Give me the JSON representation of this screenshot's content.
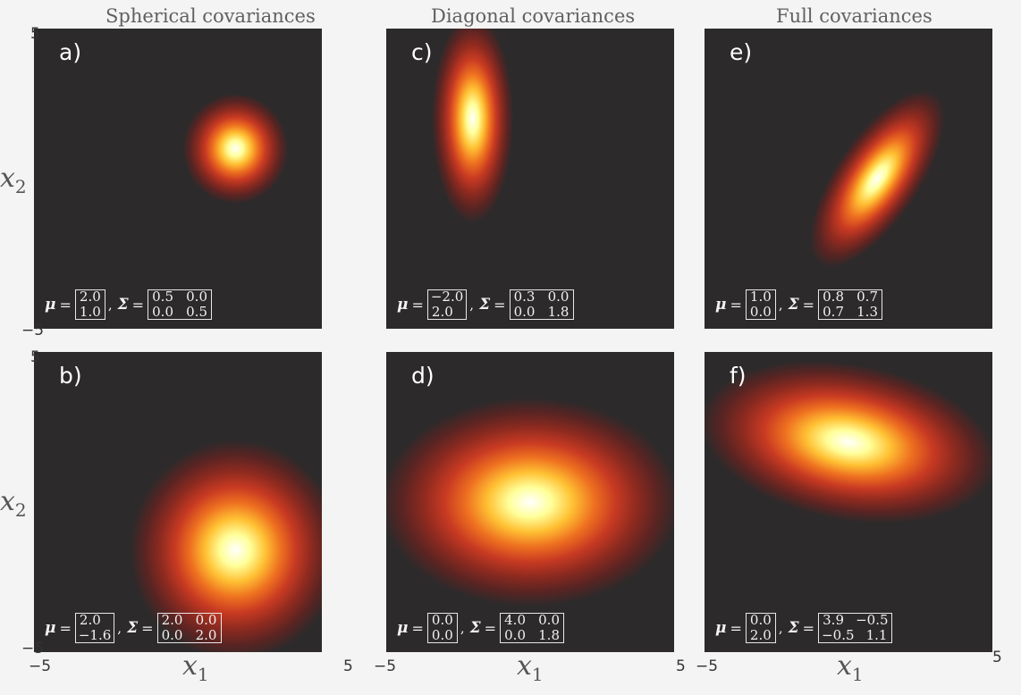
{
  "columns": [
    "Spherical covariances",
    "Diagonal covariances",
    "Full covariances"
  ],
  "axes": {
    "xlabel": "x",
    "xlabel_sub": "1",
    "ylabel": "x",
    "ylabel_sub": "2",
    "xlim": [
      -5,
      5
    ],
    "ylim": [
      -5,
      5
    ],
    "x_tick_min": "−5",
    "x_tick_max": "5",
    "y_tick_min": "−5",
    "y_tick_max": "5"
  },
  "chart_data": [
    {
      "type": "heatmap",
      "label": "a)",
      "mu": [
        2.0,
        1.0
      ],
      "sigma": [
        [
          0.5,
          0.0
        ],
        [
          0.0,
          0.5
        ]
      ],
      "mu_text": [
        "2.0",
        "1.0"
      ],
      "sigma_text": [
        [
          "0.5",
          "0.0"
        ],
        [
          "0.0",
          "0.5"
        ]
      ]
    },
    {
      "type": "heatmap",
      "label": "b)",
      "mu": [
        2.0,
        -1.6
      ],
      "sigma": [
        [
          2.0,
          0.0
        ],
        [
          0.0,
          2.0
        ]
      ],
      "mu_text": [
        "2.0",
        "−1.6"
      ],
      "sigma_text": [
        [
          "2.0",
          "0.0"
        ],
        [
          "0.0",
          "2.0"
        ]
      ]
    },
    {
      "type": "heatmap",
      "label": "c)",
      "mu": [
        -2.0,
        2.0
      ],
      "sigma": [
        [
          0.3,
          0.0
        ],
        [
          0.0,
          1.8
        ]
      ],
      "mu_text": [
        "−2.0",
        "2.0"
      ],
      "sigma_text": [
        [
          "0.3",
          "0.0"
        ],
        [
          "0.0",
          "1.8"
        ]
      ]
    },
    {
      "type": "heatmap",
      "label": "d)",
      "mu": [
        0.0,
        0.0
      ],
      "sigma": [
        [
          4.0,
          0.0
        ],
        [
          0.0,
          1.8
        ]
      ],
      "mu_text": [
        "0.0",
        "0.0"
      ],
      "sigma_text": [
        [
          "4.0",
          "0.0"
        ],
        [
          "0.0",
          "1.8"
        ]
      ]
    },
    {
      "type": "heatmap",
      "label": "e)",
      "mu": [
        1.0,
        0.0
      ],
      "sigma": [
        [
          0.8,
          0.7
        ],
        [
          0.7,
          1.3
        ]
      ],
      "mu_text": [
        "1.0",
        "0.0"
      ],
      "sigma_text": [
        [
          "0.8",
          "0.7"
        ],
        [
          "0.7",
          "1.3"
        ]
      ]
    },
    {
      "type": "heatmap",
      "label": "f)",
      "mu": [
        0.0,
        2.0
      ],
      "sigma": [
        [
          3.9,
          -0.5
        ],
        [
          -0.5,
          1.1
        ]
      ],
      "mu_text": [
        "0.0",
        "2.0"
      ],
      "sigma_text": [
        [
          "3.9",
          "−0.5"
        ],
        [
          "−0.5",
          "1.1"
        ]
      ]
    }
  ],
  "formula": {
    "mu_symbol": "μ",
    "sigma_symbol": "Σ",
    "equals": "=",
    "comma": ","
  },
  "colors": {
    "background": "#2c2a2b",
    "stops": [
      "#2c2a2b",
      "#5a2422",
      "#8e2a20",
      "#c83a22",
      "#ee7020",
      "#ffc033",
      "#ffff9a",
      "#ffffff"
    ]
  }
}
